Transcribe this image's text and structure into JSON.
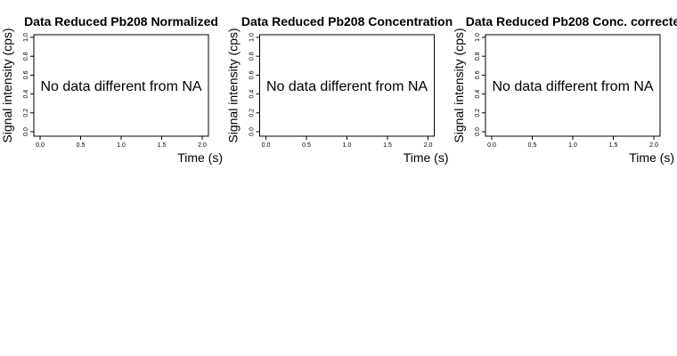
{
  "chart_data": [
    {
      "type": "line",
      "title": "Data Reduced Pb208 Normalized",
      "xlabel": "Time (s)",
      "ylabel": "Signal intensity (cps)",
      "message": "No data different from NA",
      "xlim": [
        0,
        2
      ],
      "ylim": [
        0,
        1
      ],
      "xticks": [
        "0.0",
        "0.5",
        "1.0",
        "1.5",
        "2.0"
      ],
      "yticks": [
        "0.0",
        "0.2",
        "0.4",
        "0.6",
        "0.8",
        "1.0"
      ],
      "series": []
    },
    {
      "type": "line",
      "title": "Data Reduced Pb208 Concentration",
      "xlabel": "Time (s)",
      "ylabel": "Signal intensity (cps)",
      "message": "No data different from NA",
      "xlim": [
        0,
        2
      ],
      "ylim": [
        0,
        1
      ],
      "xticks": [
        "0.0",
        "0.5",
        "1.0",
        "1.5",
        "2.0"
      ],
      "yticks": [
        "0.0",
        "0.2",
        "0.4",
        "0.6",
        "0.8",
        "1.0"
      ],
      "series": []
    },
    {
      "type": "line",
      "title": "Data Reduced Pb208 Conc. correcte",
      "xlabel": "Time (s)",
      "ylabel": "Signal intensity (cps)",
      "message": "No data different from NA",
      "xlim": [
        0,
        2
      ],
      "ylim": [
        0,
        1
      ],
      "xticks": [
        "0.0",
        "0.5",
        "1.0",
        "1.5",
        "2.0"
      ],
      "yticks": [
        "0.0",
        "0.2",
        "0.4",
        "0.6",
        "0.8",
        "1.0"
      ],
      "series": []
    }
  ]
}
